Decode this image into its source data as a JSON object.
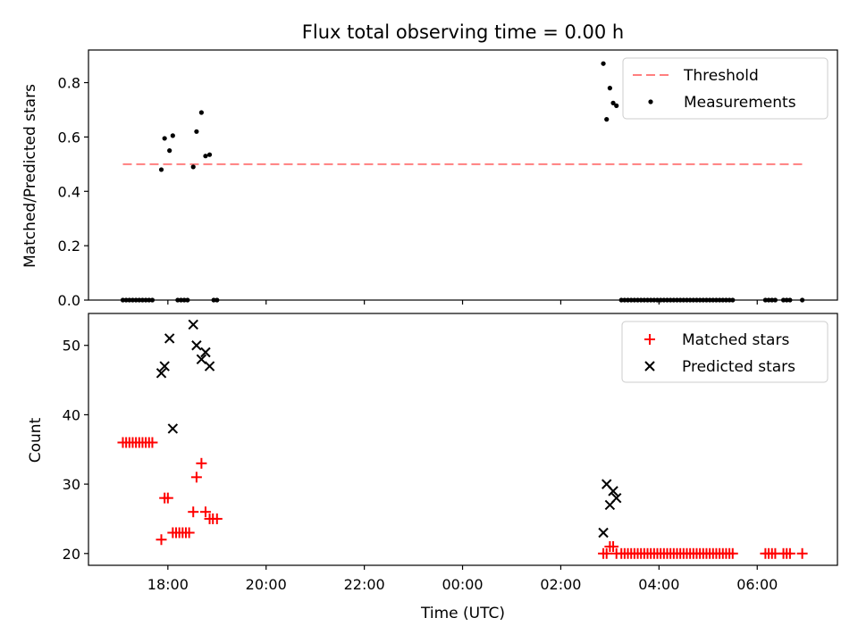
{
  "chart_data": [
    {
      "type": "scatter",
      "title": "Flux total observing time = 0.00 h",
      "ylabel": "Matched/Predicted stars",
      "xlabel": "",
      "ylim": [
        0,
        0.92
      ],
      "yticks": [
        "0.0",
        "0.2",
        "0.4",
        "0.6",
        "0.8"
      ],
      "yticks_values": [
        0,
        0.2,
        0.4,
        0.6,
        0.8
      ],
      "legend_position": "top-right",
      "threshold": {
        "name": "Threshold",
        "value": 0.5,
        "x_start": "17:05",
        "x_end": "06:55",
        "color": "#ff7f7f"
      },
      "series": [
        {
          "name": "Measurements",
          "color": "#000000",
          "points": [
            [
              "17:05",
              0
            ],
            [
              "17:09",
              0
            ],
            [
              "17:13",
              0
            ],
            [
              "17:17",
              0
            ],
            [
              "17:21",
              0
            ],
            [
              "17:25",
              0
            ],
            [
              "17:29",
              0
            ],
            [
              "17:33",
              0
            ],
            [
              "17:37",
              0
            ],
            [
              "17:41",
              0
            ],
            [
              "17:52",
              0.48
            ],
            [
              "17:56",
              0.595
            ],
            [
              "18:02",
              0.55
            ],
            [
              "18:06",
              0.605
            ],
            [
              "18:12",
              0
            ],
            [
              "18:16",
              0
            ],
            [
              "18:20",
              0
            ],
            [
              "18:24",
              0
            ],
            [
              "18:31",
              0.49
            ],
            [
              "18:35",
              0.62
            ],
            [
              "18:41",
              0.69
            ],
            [
              "18:46",
              0.53
            ],
            [
              "18:51",
              0.535
            ],
            [
              "18:56",
              0
            ],
            [
              "19:00",
              0
            ],
            [
              "02:52",
              0.87
            ],
            [
              "02:56",
              0.665
            ],
            [
              "03:00",
              0.78
            ],
            [
              "03:04",
              0.725
            ],
            [
              "03:08",
              0.715
            ],
            [
              "03:14",
              0
            ],
            [
              "03:18",
              0
            ],
            [
              "03:22",
              0
            ],
            [
              "03:26",
              0
            ],
            [
              "03:30",
              0
            ],
            [
              "03:34",
              0
            ],
            [
              "03:38",
              0
            ],
            [
              "03:42",
              0
            ],
            [
              "03:46",
              0
            ],
            [
              "03:50",
              0
            ],
            [
              "03:54",
              0
            ],
            [
              "03:58",
              0
            ],
            [
              "04:02",
              0
            ],
            [
              "04:06",
              0
            ],
            [
              "04:10",
              0
            ],
            [
              "04:14",
              0
            ],
            [
              "04:18",
              0
            ],
            [
              "04:22",
              0
            ],
            [
              "04:26",
              0
            ],
            [
              "04:30",
              0
            ],
            [
              "04:34",
              0
            ],
            [
              "04:38",
              0
            ],
            [
              "04:42",
              0
            ],
            [
              "04:46",
              0
            ],
            [
              "04:50",
              0
            ],
            [
              "04:54",
              0
            ],
            [
              "04:58",
              0
            ],
            [
              "05:02",
              0
            ],
            [
              "05:06",
              0
            ],
            [
              "05:10",
              0
            ],
            [
              "05:14",
              0
            ],
            [
              "05:18",
              0
            ],
            [
              "05:22",
              0
            ],
            [
              "05:26",
              0
            ],
            [
              "05:30",
              0
            ],
            [
              "06:10",
              0
            ],
            [
              "06:14",
              0
            ],
            [
              "06:18",
              0
            ],
            [
              "06:22",
              0
            ],
            [
              "06:32",
              0
            ],
            [
              "06:36",
              0
            ],
            [
              "06:40",
              0
            ],
            [
              "06:55",
              0
            ]
          ]
        }
      ]
    },
    {
      "type": "scatter",
      "title": "",
      "ylabel": "Count",
      "xlabel": "Time (UTC)",
      "ylim": [
        18.3,
        54.6
      ],
      "yticks": [
        "20",
        "30",
        "40",
        "50"
      ],
      "yticks_values": [
        20,
        30,
        40,
        50
      ],
      "x_range": [
        "16:23",
        "07:38"
      ],
      "xticks": [
        "18:00",
        "20:00",
        "22:00",
        "00:00",
        "02:00",
        "04:00",
        "06:00"
      ],
      "legend_position": "top-right",
      "series": [
        {
          "name": "Matched stars",
          "marker": "+",
          "color": "#ff0000",
          "points": [
            [
              "17:05",
              36
            ],
            [
              "17:09",
              36
            ],
            [
              "17:13",
              36
            ],
            [
              "17:17",
              36
            ],
            [
              "17:21",
              36
            ],
            [
              "17:25",
              36
            ],
            [
              "17:29",
              36
            ],
            [
              "17:33",
              36
            ],
            [
              "17:37",
              36
            ],
            [
              "17:41",
              36
            ],
            [
              "17:52",
              22
            ],
            [
              "17:56",
              28
            ],
            [
              "18:00",
              28
            ],
            [
              "18:06",
              23
            ],
            [
              "18:10",
              23
            ],
            [
              "18:14",
              23
            ],
            [
              "18:18",
              23
            ],
            [
              "18:22",
              23
            ],
            [
              "18:26",
              23
            ],
            [
              "18:31",
              26
            ],
            [
              "18:35",
              31
            ],
            [
              "18:41",
              33
            ],
            [
              "18:46",
              26
            ],
            [
              "18:51",
              25
            ],
            [
              "18:55",
              25
            ],
            [
              "19:00",
              25
            ],
            [
              "02:52",
              20
            ],
            [
              "02:56",
              20
            ],
            [
              "03:00",
              21
            ],
            [
              "03:04",
              21
            ],
            [
              "03:08",
              20
            ],
            [
              "03:14",
              20
            ],
            [
              "03:18",
              20
            ],
            [
              "03:22",
              20
            ],
            [
              "03:26",
              20
            ],
            [
              "03:30",
              20
            ],
            [
              "03:34",
              20
            ],
            [
              "03:38",
              20
            ],
            [
              "03:42",
              20
            ],
            [
              "03:46",
              20
            ],
            [
              "03:50",
              20
            ],
            [
              "03:54",
              20
            ],
            [
              "03:58",
              20
            ],
            [
              "04:02",
              20
            ],
            [
              "04:06",
              20
            ],
            [
              "04:10",
              20
            ],
            [
              "04:14",
              20
            ],
            [
              "04:18",
              20
            ],
            [
              "04:22",
              20
            ],
            [
              "04:26",
              20
            ],
            [
              "04:30",
              20
            ],
            [
              "04:34",
              20
            ],
            [
              "04:38",
              20
            ],
            [
              "04:42",
              20
            ],
            [
              "04:46",
              20
            ],
            [
              "04:50",
              20
            ],
            [
              "04:54",
              20
            ],
            [
              "04:58",
              20
            ],
            [
              "05:02",
              20
            ],
            [
              "05:06",
              20
            ],
            [
              "05:10",
              20
            ],
            [
              "05:14",
              20
            ],
            [
              "05:18",
              20
            ],
            [
              "05:22",
              20
            ],
            [
              "05:26",
              20
            ],
            [
              "05:30",
              20
            ],
            [
              "06:10",
              20
            ],
            [
              "06:14",
              20
            ],
            [
              "06:18",
              20
            ],
            [
              "06:22",
              20
            ],
            [
              "06:32",
              20
            ],
            [
              "06:36",
              20
            ],
            [
              "06:40",
              20
            ],
            [
              "06:55",
              20
            ]
          ]
        },
        {
          "name": "Predicted stars",
          "marker": "x",
          "color": "#000000",
          "points": [
            [
              "17:52",
              46
            ],
            [
              "17:56",
              47
            ],
            [
              "18:02",
              51
            ],
            [
              "18:06",
              38
            ],
            [
              "18:31",
              53
            ],
            [
              "18:35",
              50
            ],
            [
              "18:41",
              48
            ],
            [
              "18:46",
              49
            ],
            [
              "18:51",
              47
            ],
            [
              "02:52",
              23
            ],
            [
              "02:56",
              30
            ],
            [
              "03:00",
              27
            ],
            [
              "03:04",
              29
            ],
            [
              "03:08",
              28
            ]
          ]
        }
      ]
    }
  ]
}
